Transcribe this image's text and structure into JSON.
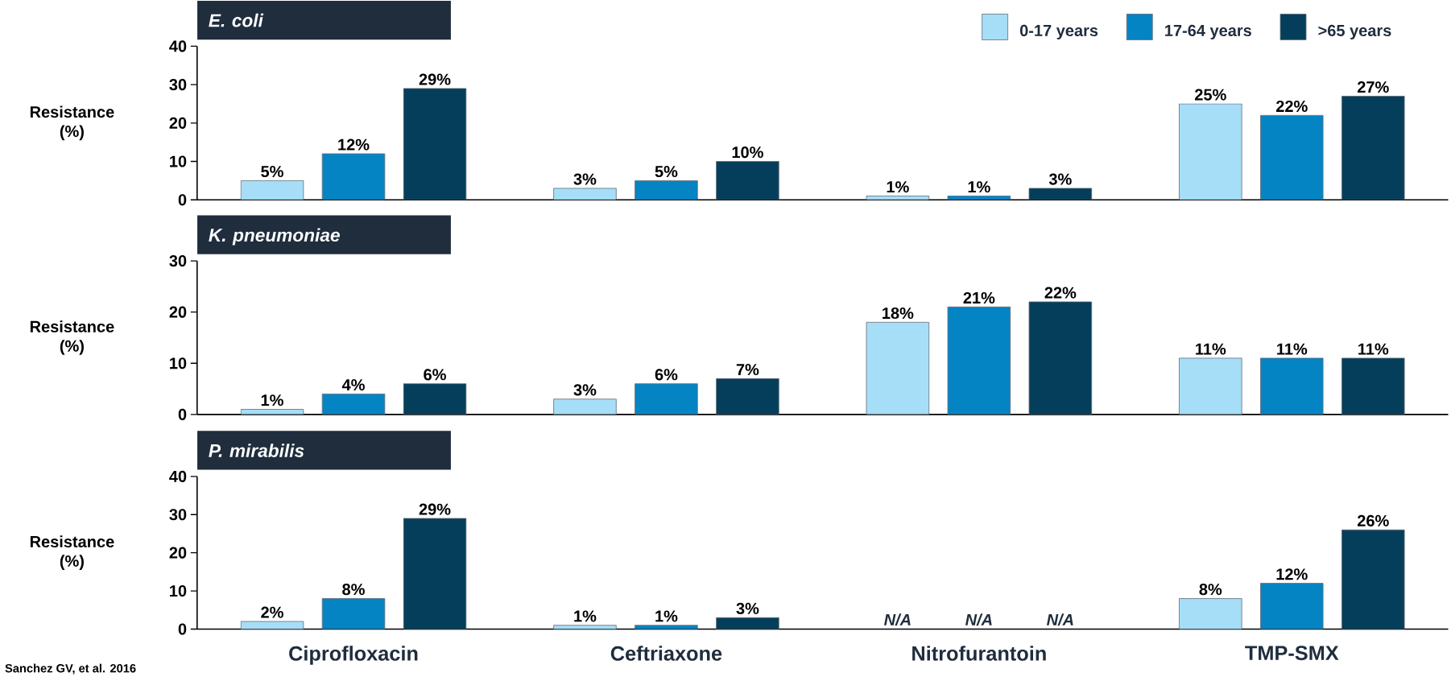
{
  "chart_data": [
    {
      "type": "bar",
      "title": "E. coli",
      "ylabel": "Resistance (%)",
      "ylim": [
        0,
        40
      ],
      "yticks": [
        0,
        10,
        20,
        30,
        40
      ],
      "tick_labels": "y",
      "legend": "top right",
      "series": [
        {
          "name": "0-17 years",
          "color": "#a6def7",
          "values": [
            5,
            3,
            1,
            25
          ],
          "value_labels": [
            "5%",
            "3%",
            "1%",
            "25%"
          ]
        },
        {
          "name": "17-64 years",
          "color": "#0584c4",
          "values": [
            12,
            5,
            1,
            22
          ],
          "value_labels": [
            "12%",
            "5%",
            "1%",
            "22%"
          ]
        },
        {
          "name": ">65 years",
          "color": "#053e5a",
          "values": [
            29,
            10,
            3,
            27
          ],
          "value_labels": [
            "29%",
            "10%",
            "3%",
            "27%"
          ]
        }
      ]
    },
    {
      "type": "bar",
      "title": "K. pneumoniae",
      "ylabel": "Resistance (%)",
      "ylim": [
        0,
        30
      ],
      "yticks": [
        0,
        10,
        20,
        30
      ],
      "tick_labels": "y",
      "series": [
        {
          "color": "#a6def7",
          "values": [
            1,
            3,
            18,
            11
          ],
          "value_labels": [
            "1%",
            "3%",
            "18%",
            "11%"
          ]
        },
        {
          "color": "#0584c4",
          "values": [
            4,
            6,
            21,
            11
          ],
          "value_labels": [
            "4%",
            "6%",
            "21%",
            "11%"
          ]
        },
        {
          "color": "#053e5a",
          "values": [
            6,
            7,
            22,
            11
          ],
          "value_labels": [
            "6%",
            "7%",
            "22%",
            "11%"
          ]
        }
      ]
    },
    {
      "type": "bar",
      "title": "P. mirabilis",
      "ylabel": "Resistance (%)",
      "categories": [
        "Ciprofloxacin",
        "Ceftriaxone",
        "Nitrofurantoin",
        "TMP-SMX"
      ],
      "ylim": [
        0,
        40
      ],
      "yticks": [
        0,
        10,
        20,
        30,
        40
      ],
      "annotations": [
        "Sanchez GV, et al. 2016"
      ],
      "series": [
        {
          "color": "#a6def7",
          "values": [
            2,
            1,
            null,
            8
          ],
          "value_labels": [
            "2%",
            "1%",
            "N/A",
            "8%"
          ]
        },
        {
          "color": "#0584c4",
          "values": [
            8,
            1,
            null,
            12
          ],
          "value_labels": [
            "8%",
            "1%",
            "N/A",
            "12%"
          ]
        },
        {
          "color": "#053e5a",
          "values": [
            29,
            3,
            null,
            26
          ],
          "value_labels": [
            "29%",
            "3%",
            "N/A",
            "26%"
          ]
        }
      ]
    }
  ]
}
